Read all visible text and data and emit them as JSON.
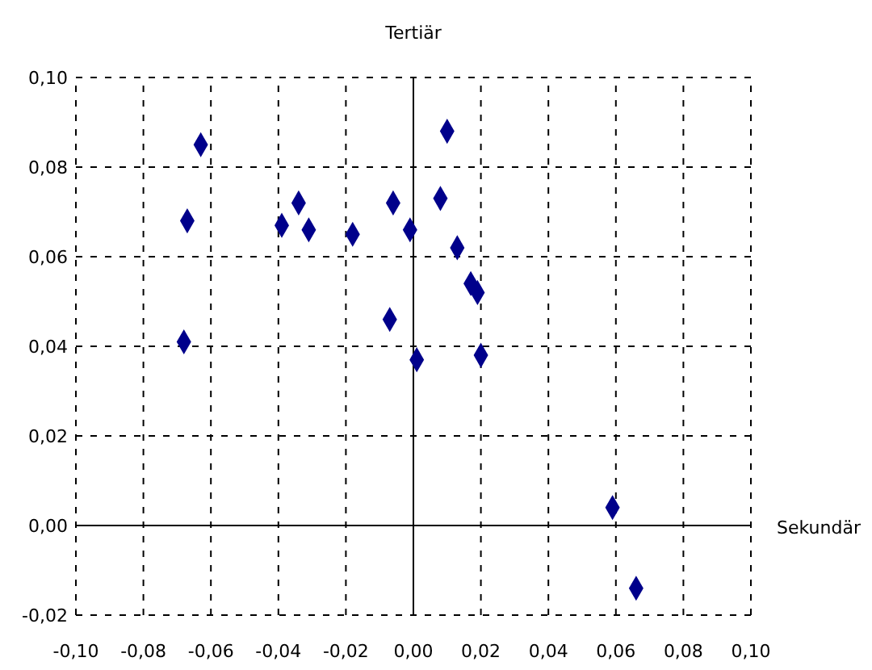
{
  "chart_data": {
    "type": "scatter",
    "xlabel": "Sekundär",
    "ylabel": "Tertiär",
    "x": [
      -0.063,
      -0.067,
      -0.068,
      -0.039,
      -0.034,
      -0.031,
      -0.018,
      -0.006,
      -0.007,
      -0.001,
      0.001,
      0.01,
      0.008,
      0.013,
      0.017,
      0.019,
      0.02,
      0.059,
      0.066
    ],
    "series": [
      {
        "color": "#00008b",
        "values": [
          0.085,
          0.068,
          0.041,
          0.067,
          0.072,
          0.066,
          0.065,
          0.072,
          0.046,
          0.066,
          0.037,
          0.088,
          0.073,
          0.062,
          0.054,
          0.052,
          0.038,
          0.004,
          -0.014
        ]
      }
    ],
    "xlim": [
      -0.1,
      0.1
    ],
    "ylim": [
      -0.02,
      0.1
    ],
    "xticks": [
      {
        "value": -0.1,
        "label": "-0,10"
      },
      {
        "value": -0.08,
        "label": "-0,08"
      },
      {
        "value": -0.06,
        "label": "-0,06"
      },
      {
        "value": -0.04,
        "label": "-0,04"
      },
      {
        "value": -0.02,
        "label": "-0,02"
      },
      {
        "value": 0,
        "label": "0,00"
      },
      {
        "value": 0.02,
        "label": "0,02"
      },
      {
        "value": 0.04,
        "label": "0,04"
      },
      {
        "value": 0.06,
        "label": "0,06"
      },
      {
        "value": 0.08,
        "label": "0,08"
      },
      {
        "value": 0.1,
        "label": "0,10"
      }
    ],
    "yticks": [
      {
        "value": -0.02,
        "label": "-0,02"
      },
      {
        "value": 0,
        "label": "0,00"
      },
      {
        "value": 0.02,
        "label": "0,02"
      },
      {
        "value": 0.04,
        "label": "0,04"
      },
      {
        "value": 0.06,
        "label": "0,06"
      },
      {
        "value": 0.08,
        "label": "0,08"
      },
      {
        "value": 0.1,
        "label": "0,10"
      }
    ],
    "grid": true,
    "marker": "diamond"
  }
}
